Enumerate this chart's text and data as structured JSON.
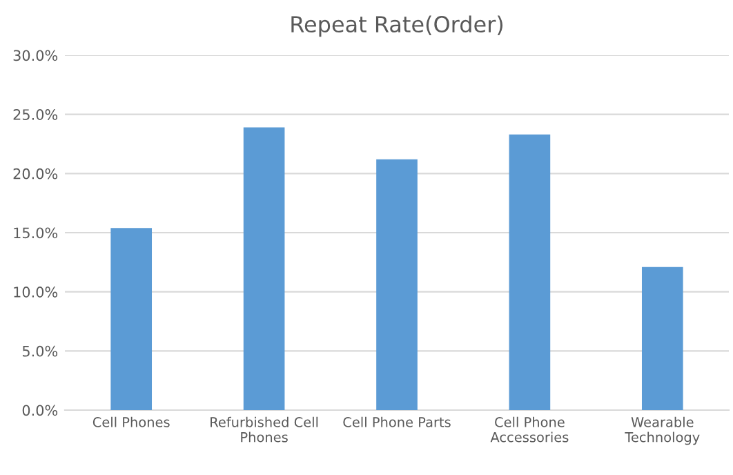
{
  "chart_data": {
    "type": "bar",
    "title": "Repeat Rate(Order)",
    "categories": [
      "Cell Phones",
      "Refurbished Cell\nPhones",
      "Cell Phone Parts",
      "Cell Phone\nAccessories",
      "Wearable\nTechnology"
    ],
    "values": [
      15.4,
      23.9,
      21.2,
      23.3,
      12.1
    ],
    "color": "#5b9bd5",
    "ylim": [
      0,
      30
    ],
    "yticks": [
      {
        "value": 0,
        "label": "0.0%"
      },
      {
        "value": 5,
        "label": "5.0%"
      },
      {
        "value": 10,
        "label": "10.0%"
      },
      {
        "value": 15,
        "label": "15.0%"
      },
      {
        "value": 20,
        "label": "20.0%"
      },
      {
        "value": 25,
        "label": "25.0%"
      },
      {
        "value": 30,
        "label": "30.0%"
      }
    ],
    "grid": "y",
    "legend": false
  }
}
